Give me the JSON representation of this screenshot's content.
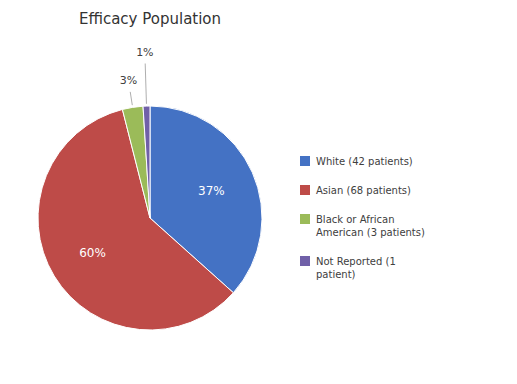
{
  "chart_data": {
    "type": "pie",
    "title": "Efficacy Population",
    "categories": [
      "White (42 patients)",
      "Asian (68 patients)",
      "Black or African\nAmerican (3 patients)",
      "Not Reported (1\npatient)"
    ],
    "values": [
      37,
      60,
      3,
      1
    ],
    "value_labels": [
      "37%",
      "60%",
      "3%",
      "1%"
    ],
    "data_labels": true,
    "colors": [
      "#4472C4",
      "#BE4B48",
      "#9BBB59",
      "#7060A8"
    ],
    "legend": "right"
  }
}
